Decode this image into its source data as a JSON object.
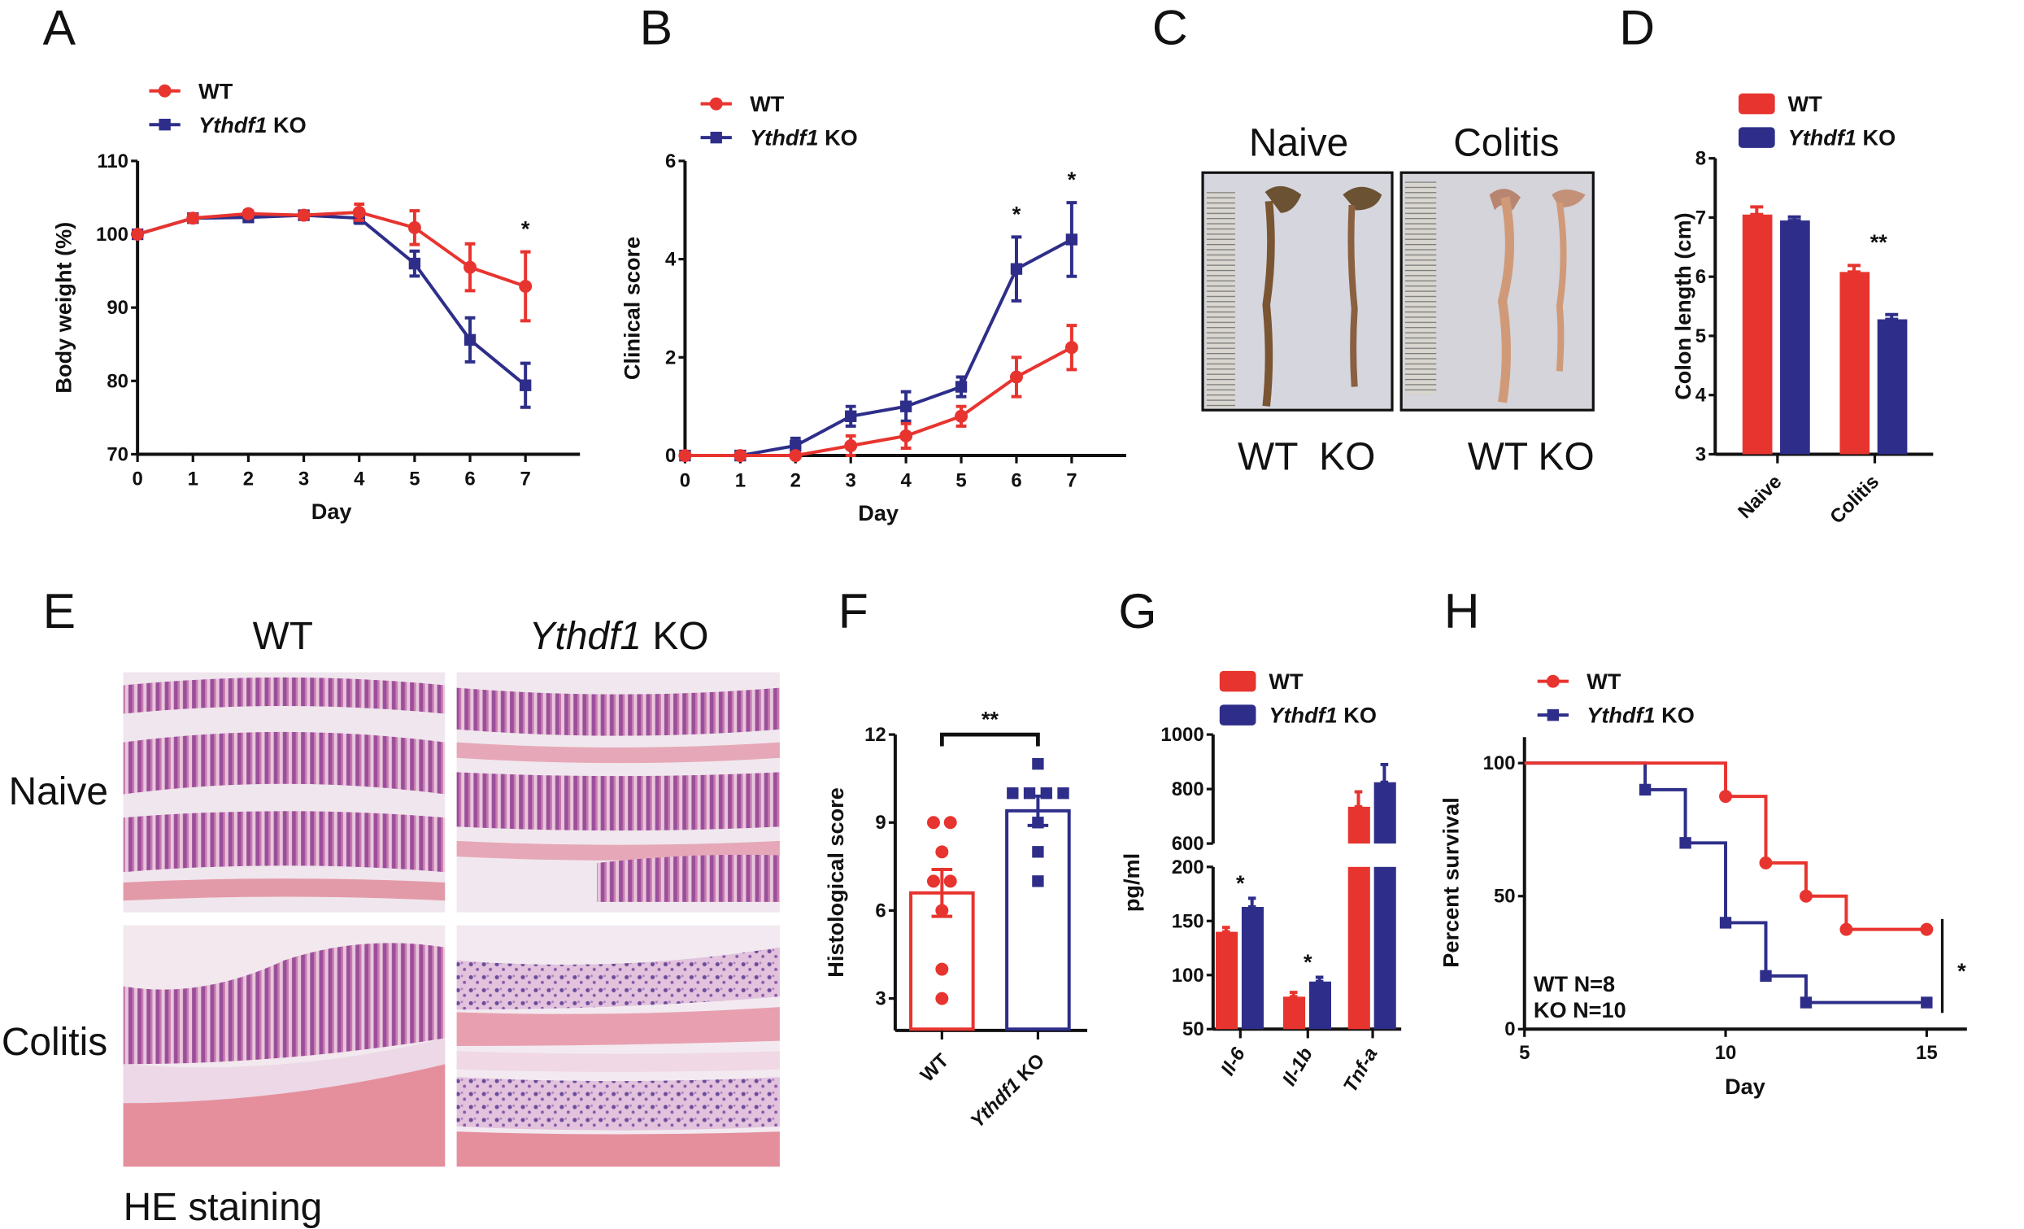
{
  "colors": {
    "wt": "#e8342f",
    "ko": "#2e2e8a"
  },
  "panel_labels": [
    "A",
    "B",
    "C",
    "D",
    "E",
    "F",
    "G",
    "H"
  ],
  "panel_c": {
    "titles": [
      "Naive",
      "Colitis"
    ],
    "groups": [
      "WT  KO",
      "WT KO"
    ]
  },
  "panel_e": {
    "columns": [
      "WT",
      "Ythdf1 KO"
    ],
    "rows": [
      "Naive",
      "Colitis"
    ],
    "caption": "HE staining"
  },
  "chart_data": [
    {
      "panel": "A",
      "type": "line",
      "xlabel": "Day",
      "ylabel": "Body weight (%)",
      "xlim": [
        0,
        7
      ],
      "ylim": [
        70,
        110
      ],
      "xticks": [
        0,
        1,
        2,
        3,
        4,
        5,
        6,
        7
      ],
      "yticks": [
        70,
        80,
        90,
        100,
        110
      ],
      "legend": "top-left",
      "x": [
        0,
        1,
        2,
        3,
        4,
        5,
        6,
        7
      ],
      "series": [
        {
          "name": "WT",
          "marker": "circle",
          "values": [
            100,
            102.2,
            102.8,
            102.6,
            103,
            100.9,
            95.5,
            92.9
          ],
          "sem": [
            0,
            0.5,
            0.4,
            0.3,
            1.1,
            2.3,
            3.2,
            4.7
          ]
        },
        {
          "name": "Ythdf1 KO",
          "marker": "square",
          "values": [
            100,
            102.2,
            102.3,
            102.6,
            102.2,
            96.0,
            85.6,
            79.4
          ],
          "sem": [
            0,
            0.5,
            0.3,
            0.3,
            0.7,
            1.7,
            3.0,
            3.0
          ]
        }
      ],
      "annotations": [
        {
          "x": 7,
          "text": "*"
        }
      ]
    },
    {
      "panel": "B",
      "type": "line",
      "xlabel": "Day",
      "ylabel": "Clinical score",
      "xlim": [
        0,
        7
      ],
      "ylim": [
        0,
        6
      ],
      "xticks": [
        0,
        1,
        2,
        3,
        4,
        5,
        6,
        7
      ],
      "yticks": [
        0,
        2,
        4,
        6
      ],
      "legend": "top-left",
      "x": [
        0,
        1,
        2,
        3,
        4,
        5,
        6,
        7
      ],
      "series": [
        {
          "name": "WT",
          "marker": "circle",
          "values": [
            0,
            0,
            0,
            0.2,
            0.4,
            0.8,
            1.6,
            2.2
          ],
          "sem": [
            0,
            0,
            0,
            0.2,
            0.25,
            0.2,
            0.4,
            0.45
          ]
        },
        {
          "name": "Ythdf1 KO",
          "marker": "square",
          "values": [
            0,
            0,
            0.2,
            0.8,
            1.0,
            1.4,
            3.8,
            4.4
          ],
          "sem": [
            0,
            0,
            0.15,
            0.2,
            0.3,
            0.2,
            0.65,
            0.75
          ]
        }
      ],
      "annotations": [
        {
          "x": 6,
          "text": "*"
        },
        {
          "x": 7,
          "text": "*"
        }
      ]
    },
    {
      "panel": "D",
      "type": "bar",
      "ylabel": "Colon length (cm)",
      "ylim": [
        3,
        8
      ],
      "yticks": [
        3,
        4,
        5,
        6,
        7,
        8
      ],
      "legend": "top",
      "categories": [
        "Naive",
        "Colitis"
      ],
      "series": [
        {
          "name": "WT",
          "values": [
            7.05,
            6.08
          ],
          "sem": [
            0.13,
            0.11
          ]
        },
        {
          "name": "Ythdf1 KO",
          "values": [
            6.95,
            5.28
          ],
          "sem": [
            0.06,
            0.08
          ]
        }
      ],
      "annotations": [
        {
          "category": "Colitis",
          "text": "**"
        }
      ]
    },
    {
      "panel": "F",
      "type": "bar",
      "ylabel": "Histological score",
      "ylim": [
        2,
        12
      ],
      "yticks": [
        3,
        6,
        9,
        12
      ],
      "categories": [
        "WT",
        "Ythdf1 KO"
      ],
      "means": [
        6.6,
        9.4
      ],
      "sem": [
        0.8,
        0.5
      ],
      "points": [
        [
          9,
          9,
          8,
          7,
          7,
          6,
          4,
          3
        ],
        [
          11,
          10,
          10,
          10,
          10,
          9,
          8,
          7
        ]
      ],
      "annotations": [
        {
          "between": [
            "WT",
            "Ythdf1 KO"
          ],
          "text": "**"
        }
      ]
    },
    {
      "panel": "G",
      "type": "bar",
      "ylabel": "pg/ml",
      "ylim_lower": [
        50,
        200
      ],
      "ylim_upper": [
        600,
        1000
      ],
      "axis_break": true,
      "yticks_lower": [
        50,
        100,
        150,
        200
      ],
      "yticks_upper": [
        600,
        800,
        1000
      ],
      "legend": "top",
      "categories": [
        "Il-6",
        "Il-1b",
        "Tnf-a"
      ],
      "series": [
        {
          "name": "WT",
          "values": [
            140,
            80,
            735
          ],
          "sem": [
            4,
            4,
            55
          ]
        },
        {
          "name": "Ythdf1 KO",
          "values": [
            163,
            94,
            825
          ],
          "sem": [
            8,
            4,
            65
          ]
        }
      ],
      "annotations": [
        {
          "category": "Il-6",
          "text": "*"
        },
        {
          "category": "Il-1b",
          "text": "*"
        }
      ]
    },
    {
      "panel": "H",
      "type": "line",
      "subtype": "survival",
      "xlabel": "Day",
      "ylabel": "Percent survival",
      "xlim": [
        5,
        16
      ],
      "ylim": [
        0,
        100
      ],
      "xticks": [
        5,
        10,
        15
      ],
      "yticks": [
        0,
        50,
        100
      ],
      "legend": "top-left",
      "series": [
        {
          "name": "WT",
          "marker": "circle",
          "steps": [
            [
              5,
              100
            ],
            [
              10,
              87.5
            ],
            [
              11,
              62.5
            ],
            [
              12,
              50
            ],
            [
              13,
              37.5
            ],
            [
              15,
              37.5
            ]
          ]
        },
        {
          "name": "Ythdf1 KO",
          "marker": "square",
          "steps": [
            [
              5,
              100
            ],
            [
              8,
              90
            ],
            [
              9,
              70
            ],
            [
              10,
              40
            ],
            [
              11,
              20
            ],
            [
              12,
              10
            ],
            [
              15,
              10
            ]
          ]
        }
      ],
      "counts": [
        "WT  N=8",
        "KO  N=10"
      ],
      "annotations": [
        {
          "text": "*"
        }
      ]
    }
  ]
}
